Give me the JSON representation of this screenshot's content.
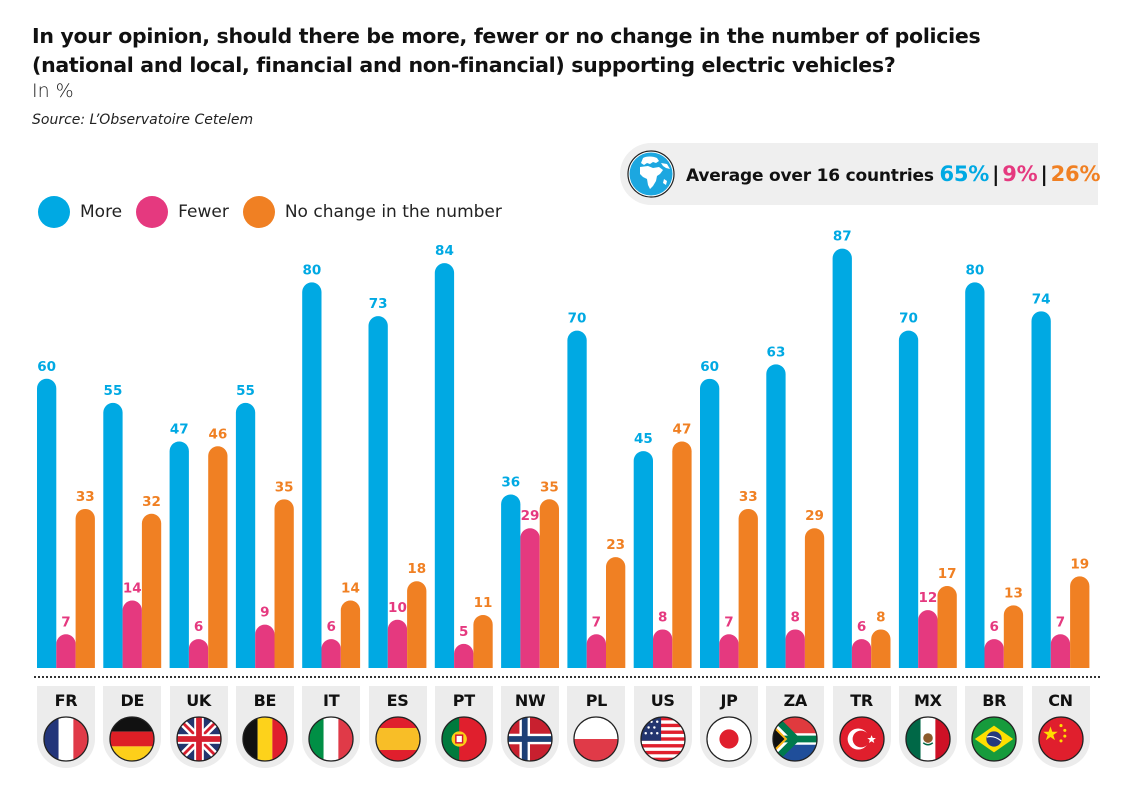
{
  "header": {
    "title_line1": "In your opinion, should there be more, fewer or no change in the number of policies",
    "title_line2": "(national and local, financial and non-financial) supporting electric vehicles?",
    "unit": "In %",
    "source": "Source: L’Observatoire Cetelem"
  },
  "average": {
    "icon": "globe-icon",
    "label": "Average over 16 countries",
    "more": "65%",
    "fewer": "9%",
    "no_change": "26%",
    "separator": "|"
  },
  "colors": {
    "more": "#00a9e3",
    "fewer": "#e5397f",
    "no_change": "#f08023"
  },
  "chart_data": {
    "type": "bar",
    "title": "In your opinion, should there be more, fewer or no change in the number of policies (national and local, financial and non-financial) supporting electric vehicles?",
    "subtitle": "In %",
    "xlabel": "",
    "ylabel": "",
    "ylim": [
      0,
      100
    ],
    "grid": false,
    "legend_position": "top-left",
    "categories": [
      "FR",
      "DE",
      "UK",
      "BE",
      "IT",
      "ES",
      "PT",
      "NW",
      "PL",
      "US",
      "JP",
      "ZA",
      "TR",
      "MX",
      "BR",
      "CN"
    ],
    "series": [
      {
        "name": "More",
        "color": "#00a9e3",
        "values": [
          60,
          55,
          47,
          55,
          80,
          73,
          84,
          36,
          70,
          45,
          60,
          63,
          87,
          70,
          80,
          74
        ]
      },
      {
        "name": "Fewer",
        "color": "#e5397f",
        "values": [
          7,
          14,
          6,
          9,
          6,
          10,
          5,
          29,
          7,
          8,
          7,
          8,
          6,
          12,
          6,
          7
        ]
      },
      {
        "name": "No change in the number",
        "color": "#f08023",
        "values": [
          33,
          32,
          46,
          35,
          14,
          18,
          11,
          35,
          23,
          47,
          33,
          29,
          8,
          17,
          13,
          19
        ]
      }
    ]
  },
  "countries": [
    {
      "code": "FR",
      "flag": "france-flag-icon"
    },
    {
      "code": "DE",
      "flag": "germany-flag-icon"
    },
    {
      "code": "UK",
      "flag": "uk-flag-icon"
    },
    {
      "code": "BE",
      "flag": "belgium-flag-icon"
    },
    {
      "code": "IT",
      "flag": "italy-flag-icon"
    },
    {
      "code": "ES",
      "flag": "spain-flag-icon"
    },
    {
      "code": "PT",
      "flag": "portugal-flag-icon"
    },
    {
      "code": "NW",
      "flag": "norway-flag-icon"
    },
    {
      "code": "PL",
      "flag": "poland-flag-icon"
    },
    {
      "code": "US",
      "flag": "usa-flag-icon"
    },
    {
      "code": "JP",
      "flag": "japan-flag-icon"
    },
    {
      "code": "ZA",
      "flag": "south-africa-flag-icon"
    },
    {
      "code": "TR",
      "flag": "turkey-flag-icon"
    },
    {
      "code": "MX",
      "flag": "mexico-flag-icon"
    },
    {
      "code": "BR",
      "flag": "brazil-flag-icon"
    },
    {
      "code": "CN",
      "flag": "china-flag-icon"
    }
  ]
}
